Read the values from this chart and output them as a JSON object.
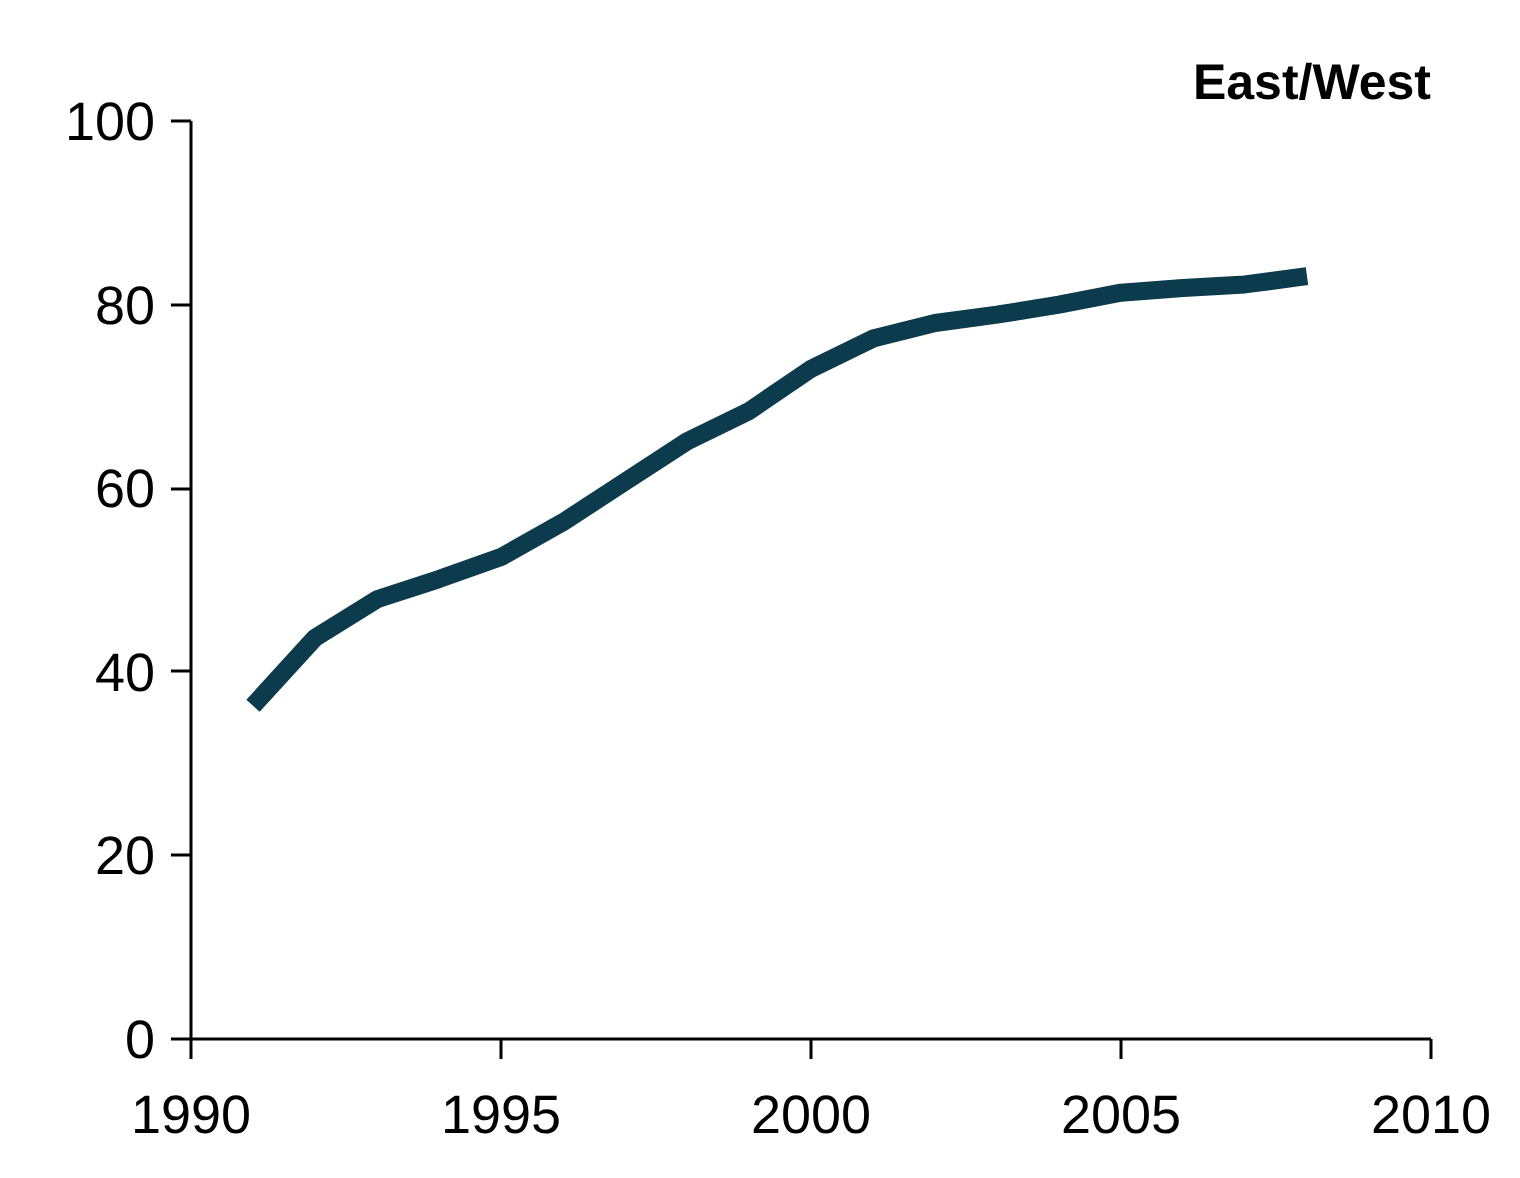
{
  "chart_data": {
    "type": "line",
    "title": "East/West",
    "x": [
      1991,
      1992,
      1993,
      1994,
      1995,
      1996,
      1997,
      1998,
      1999,
      2000,
      2001,
      2002,
      2003,
      2004,
      2005,
      2006,
      2007,
      2008
    ],
    "series": [
      {
        "color": "#0b3b4c",
        "values": [
          36.3,
          43.7,
          47.9,
          50.1,
          52.5,
          56.3,
          60.7,
          65.1,
          68.4,
          73.0,
          76.3,
          78.0,
          78.9,
          80.0,
          81.3,
          81.8,
          82.2,
          83.1
        ]
      }
    ],
    "xlim": [
      1990,
      2010
    ],
    "xticks": [
      1990,
      1995,
      2000,
      2005,
      2010
    ],
    "ylim": [
      0,
      100
    ],
    "yticks": [
      0,
      20,
      40,
      60,
      80,
      100
    ],
    "grid": false,
    "marker": "none",
    "line_style": "solid"
  }
}
